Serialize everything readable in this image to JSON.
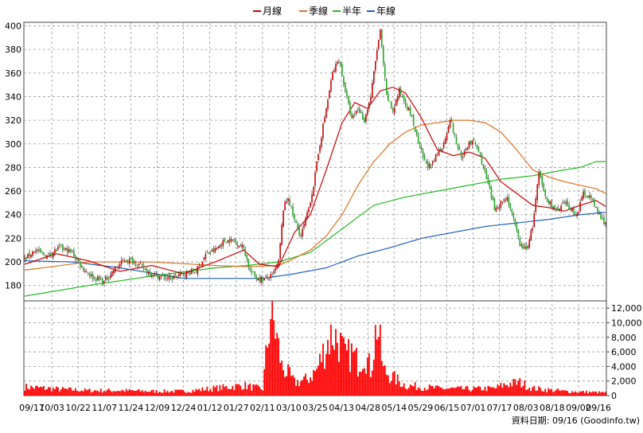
{
  "chart_data": {
    "type": "candlestick-with-volume",
    "legend": [
      {
        "name": "月線",
        "color": "#cc0000"
      },
      {
        "name": "季線",
        "color": "#e07020"
      },
      {
        "name": "半年",
        "color": "#22bb22"
      },
      {
        "name": "年線",
        "color": "#1f5fbf"
      }
    ],
    "legend_position": "top-center",
    "price_axis": {
      "ticks": [
        180,
        200,
        220,
        240,
        260,
        280,
        300,
        320,
        340,
        360,
        380,
        400
      ],
      "ylim": [
        167,
        403
      ],
      "side": "left"
    },
    "volume_axis": {
      "ticks": [
        0,
        2000,
        4000,
        6000,
        8000,
        10000,
        12000
      ],
      "tick_labels": [
        "0",
        "2,000",
        "4,000",
        "6,000",
        "8,000",
        "10,000",
        "12,000"
      ],
      "ylim": [
        0,
        13000
      ],
      "side": "right"
    },
    "x_labels": [
      "09/17",
      "10/03",
      "10/22",
      "11/07",
      "11/24",
      "12/09",
      "12/24",
      "01/12",
      "01/27",
      "02/11",
      "03/10",
      "03/25",
      "04/13",
      "04/28",
      "05/14",
      "05/29",
      "06/15",
      "07/01",
      "07/17",
      "08/03",
      "08/18",
      "09/02",
      "09/16"
    ],
    "grid": true,
    "up_color": "#cc0000",
    "down_color": "#22aa22",
    "bar_color": "#ff0000",
    "price_keypoints": [
      [
        0,
        202
      ],
      [
        6,
        210
      ],
      [
        14,
        205
      ],
      [
        22,
        212
      ],
      [
        30,
        208
      ],
      [
        36,
        196
      ],
      [
        42,
        188
      ],
      [
        50,
        183
      ],
      [
        56,
        193
      ],
      [
        63,
        202
      ],
      [
        70,
        200
      ],
      [
        76,
        193
      ],
      [
        84,
        188
      ],
      [
        92,
        186
      ],
      [
        100,
        190
      ],
      [
        108,
        192
      ],
      [
        114,
        206
      ],
      [
        120,
        210
      ],
      [
        126,
        218
      ],
      [
        132,
        218
      ],
      [
        138,
        212
      ],
      [
        142,
        192
      ],
      [
        146,
        187
      ],
      [
        150,
        185
      ],
      [
        156,
        188
      ],
      [
        160,
        200
      ],
      [
        163,
        245
      ],
      [
        166,
        255
      ],
      [
        170,
        235
      ],
      [
        174,
        222
      ],
      [
        178,
        240
      ],
      [
        182,
        265
      ],
      [
        186,
        300
      ],
      [
        190,
        330
      ],
      [
        194,
        360
      ],
      [
        198,
        372
      ],
      [
        202,
        345
      ],
      [
        206,
        320
      ],
      [
        210,
        330
      ],
      [
        214,
        320
      ],
      [
        218,
        340
      ],
      [
        222,
        380
      ],
      [
        224,
        395
      ],
      [
        228,
        340
      ],
      [
        232,
        328
      ],
      [
        236,
        345
      ],
      [
        240,
        335
      ],
      [
        244,
        322
      ],
      [
        248,
        300
      ],
      [
        252,
        285
      ],
      [
        256,
        280
      ],
      [
        260,
        292
      ],
      [
        264,
        300
      ],
      [
        268,
        322
      ],
      [
        272,
        300
      ],
      [
        276,
        288
      ],
      [
        280,
        302
      ],
      [
        284,
        300
      ],
      [
        288,
        285
      ],
      [
        292,
        265
      ],
      [
        296,
        245
      ],
      [
        300,
        250
      ],
      [
        304,
        255
      ],
      [
        308,
        235
      ],
      [
        312,
        215
      ],
      [
        316,
        210
      ],
      [
        320,
        230
      ],
      [
        324,
        275
      ],
      [
        328,
        255
      ],
      [
        332,
        248
      ],
      [
        336,
        242
      ],
      [
        340,
        250
      ],
      [
        344,
        245
      ],
      [
        348,
        240
      ],
      [
        352,
        258
      ],
      [
        356,
        256
      ],
      [
        360,
        245
      ],
      [
        364,
        235
      ],
      [
        366,
        234
      ]
    ],
    "volume_keypoints": [
      [
        0,
        1200
      ],
      [
        20,
        900
      ],
      [
        40,
        700
      ],
      [
        60,
        700
      ],
      [
        80,
        600
      ],
      [
        100,
        600
      ],
      [
        120,
        1000
      ],
      [
        138,
        1400
      ],
      [
        150,
        900
      ],
      [
        155,
        11500
      ],
      [
        158,
        9000
      ],
      [
        162,
        4000
      ],
      [
        166,
        3000
      ],
      [
        170,
        1800
      ],
      [
        178,
        2200
      ],
      [
        184,
        3500
      ],
      [
        190,
        7000
      ],
      [
        194,
        8500
      ],
      [
        198,
        7500
      ],
      [
        202,
        5200
      ],
      [
        206,
        5800
      ],
      [
        210,
        4500
      ],
      [
        214,
        6000
      ],
      [
        218,
        3500
      ],
      [
        222,
        10000
      ],
      [
        226,
        3500
      ],
      [
        232,
        2500
      ],
      [
        240,
        1400
      ],
      [
        260,
        1000
      ],
      [
        280,
        900
      ],
      [
        296,
        1000
      ],
      [
        304,
        1600
      ],
      [
        312,
        1800
      ],
      [
        320,
        1000
      ],
      [
        340,
        600
      ],
      [
        366,
        400
      ]
    ],
    "ma_month": [
      [
        0,
        198
      ],
      [
        20,
        207
      ],
      [
        40,
        201
      ],
      [
        60,
        192
      ],
      [
        80,
        197
      ],
      [
        100,
        190
      ],
      [
        120,
        200
      ],
      [
        138,
        210
      ],
      [
        148,
        198
      ],
      [
        160,
        196
      ],
      [
        170,
        225
      ],
      [
        180,
        240
      ],
      [
        190,
        278
      ],
      [
        200,
        318
      ],
      [
        208,
        335
      ],
      [
        216,
        330
      ],
      [
        224,
        345
      ],
      [
        232,
        348
      ],
      [
        240,
        343
      ],
      [
        250,
        322
      ],
      [
        260,
        295
      ],
      [
        270,
        290
      ],
      [
        280,
        293
      ],
      [
        290,
        288
      ],
      [
        300,
        268
      ],
      [
        310,
        258
      ],
      [
        320,
        248
      ],
      [
        330,
        246
      ],
      [
        340,
        243
      ],
      [
        350,
        248
      ],
      [
        360,
        252
      ],
      [
        366,
        247
      ]
    ],
    "ma_season": [
      [
        0,
        193
      ],
      [
        40,
        200
      ],
      [
        80,
        200
      ],
      [
        120,
        197
      ],
      [
        140,
        196
      ],
      [
        160,
        197
      ],
      [
        170,
        203
      ],
      [
        180,
        210
      ],
      [
        190,
        222
      ],
      [
        200,
        240
      ],
      [
        210,
        265
      ],
      [
        220,
        285
      ],
      [
        230,
        300
      ],
      [
        240,
        310
      ],
      [
        250,
        316
      ],
      [
        260,
        318
      ],
      [
        270,
        320
      ],
      [
        280,
        320
      ],
      [
        290,
        318
      ],
      [
        300,
        310
      ],
      [
        310,
        295
      ],
      [
        320,
        278
      ],
      [
        330,
        272
      ],
      [
        340,
        268
      ],
      [
        350,
        265
      ],
      [
        360,
        262
      ],
      [
        366,
        258
      ]
    ],
    "ma_half": [
      [
        0,
        171
      ],
      [
        40,
        180
      ],
      [
        80,
        188
      ],
      [
        120,
        195
      ],
      [
        140,
        197
      ],
      [
        160,
        200
      ],
      [
        180,
        208
      ],
      [
        200,
        228
      ],
      [
        220,
        248
      ],
      [
        240,
        255
      ],
      [
        260,
        260
      ],
      [
        280,
        265
      ],
      [
        300,
        270
      ],
      [
        320,
        273
      ],
      [
        340,
        278
      ],
      [
        350,
        280
      ],
      [
        360,
        285
      ],
      [
        366,
        285
      ]
    ],
    "ma_year": [
      [
        0,
        201
      ],
      [
        30,
        200
      ],
      [
        60,
        195
      ],
      [
        100,
        186
      ],
      [
        150,
        186
      ],
      [
        170,
        190
      ],
      [
        190,
        195
      ],
      [
        210,
        205
      ],
      [
        230,
        212
      ],
      [
        250,
        220
      ],
      [
        270,
        225
      ],
      [
        290,
        230
      ],
      [
        310,
        233
      ],
      [
        330,
        236
      ],
      [
        350,
        240
      ],
      [
        366,
        242
      ]
    ],
    "footer": "資料日期: 09/16  (Goodinfo.tw)"
  }
}
